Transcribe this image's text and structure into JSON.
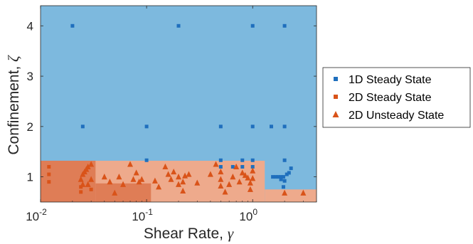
{
  "chart_data": {
    "type": "scatter",
    "xlabel_text": "Shear Rate,",
    "xlabel_symbol": "γ",
    "ylabel_text": "Confinement, ",
    "ylabel_symbol": "ζ",
    "x_scale": "log",
    "xlim": [
      0.01,
      4
    ],
    "ylim": [
      0.5,
      4.4
    ],
    "x_ticks": [
      {
        "value": 0.01,
        "base": "10",
        "exp": "-2"
      },
      {
        "value": 0.1,
        "base": "10",
        "exp": "-1"
      },
      {
        "value": 1,
        "base": "10",
        "exp": "0"
      }
    ],
    "y_ticks": [
      {
        "value": 1,
        "label": "1"
      },
      {
        "value": 2,
        "label": "2"
      },
      {
        "value": 3,
        "label": "3"
      },
      {
        "value": 4,
        "label": "4"
      }
    ],
    "grid": false,
    "legend_position": "right",
    "background_regions": [
      {
        "name": "1D Steady State",
        "color": "#7db9de",
        "x_range": [
          0.01,
          4
        ],
        "y_range": [
          0.5,
          4.4
        ]
      },
      {
        "name": "2D Unsteady State",
        "color": "#eeaa8c",
        "x_range": [
          0.01,
          1.3
        ],
        "y_range": [
          0.5,
          1.32
        ]
      },
      {
        "name": "2D Unsteady State",
        "color": "#eeaa8c",
        "x_range": [
          1.3,
          4
        ],
        "y_range": [
          0.5,
          0.75
        ]
      },
      {
        "name": "2D Steady State",
        "color": "#df7d56",
        "x_range": [
          0.01,
          0.033
        ],
        "y_range": [
          0.5,
          1.32
        ]
      },
      {
        "name": "2D Steady State",
        "color": "#df7d56",
        "x_range": [
          0.033,
          0.11
        ],
        "y_range": [
          0.5,
          0.87
        ]
      }
    ],
    "series": [
      {
        "name": "1D Steady State",
        "marker": "square",
        "color": "#1f6fbd",
        "points": [
          [
            0.02,
            4
          ],
          [
            0.2,
            4
          ],
          [
            1,
            4
          ],
          [
            2,
            4
          ],
          [
            0.025,
            2
          ],
          [
            0.1,
            2
          ],
          [
            0.5,
            2
          ],
          [
            1,
            2
          ],
          [
            1.5,
            2
          ],
          [
            2,
            2
          ],
          [
            0.1,
            1.33
          ],
          [
            0.5,
            1.33
          ],
          [
            0.8,
            1.33
          ],
          [
            1,
            1.33
          ],
          [
            2,
            1.33
          ],
          [
            0.5,
            1.2
          ],
          [
            0.65,
            1.2
          ],
          [
            0.8,
            1.2
          ],
          [
            1,
            1.2
          ],
          [
            2.3,
            1.17
          ],
          [
            1.55,
            1
          ],
          [
            1.65,
            1
          ],
          [
            1.75,
            1
          ],
          [
            1.85,
            1
          ],
          [
            1.95,
            1
          ],
          [
            2.1,
            1.05
          ],
          [
            2.2,
            1.08
          ],
          [
            1.85,
            0.95
          ],
          [
            2.0,
            0.92
          ],
          [
            1.95,
            0.8
          ]
        ]
      },
      {
        "name": "2D Steady State",
        "marker": "square",
        "color": "#d95319",
        "points": [
          [
            0.012,
            1.2
          ],
          [
            0.012,
            1.05
          ],
          [
            0.012,
            0.9
          ],
          [
            0.024,
            0.7
          ],
          [
            0.024,
            0.8
          ],
          [
            0.03,
            0.75
          ]
        ]
      },
      {
        "name": "2D Unsteady State",
        "marker": "triangle",
        "color": "#d95319",
        "points": [
          [
            0.024,
            0.95
          ],
          [
            0.025,
            1.05
          ],
          [
            0.026,
            1.1
          ],
          [
            0.027,
            1.15
          ],
          [
            0.028,
            1.2
          ],
          [
            0.03,
            1.25
          ],
          [
            0.03,
            0.95
          ],
          [
            0.025,
            0.85
          ],
          [
            0.028,
            0.85
          ],
          [
            0.04,
            1.0
          ],
          [
            0.045,
            0.9
          ],
          [
            0.05,
            0.68
          ],
          [
            0.055,
            1.0
          ],
          [
            0.06,
            0.85
          ],
          [
            0.07,
            1.25
          ],
          [
            0.075,
            0.95
          ],
          [
            0.08,
            1.08
          ],
          [
            0.085,
            0.9
          ],
          [
            0.09,
            0.95
          ],
          [
            0.12,
            0.92
          ],
          [
            0.13,
            0.8
          ],
          [
            0.15,
            1.2
          ],
          [
            0.16,
            1.05
          ],
          [
            0.17,
            0.95
          ],
          [
            0.18,
            1.1
          ],
          [
            0.2,
            1.0
          ],
          [
            0.2,
            0.85
          ],
          [
            0.22,
            0.9
          ],
          [
            0.22,
            0.72
          ],
          [
            0.23,
            1.02
          ],
          [
            0.25,
            1.05
          ],
          [
            0.3,
            0.88
          ],
          [
            0.4,
            1.05
          ],
          [
            0.45,
            1.25
          ],
          [
            0.5,
            1.1
          ],
          [
            0.5,
            0.95
          ],
          [
            0.5,
            0.82
          ],
          [
            0.55,
            0.7
          ],
          [
            0.6,
            0.85
          ],
          [
            0.65,
            1.0
          ],
          [
            0.7,
            1.2
          ],
          [
            0.75,
            0.9
          ],
          [
            0.8,
            1.08
          ],
          [
            0.85,
            1.03
          ],
          [
            0.9,
            0.98
          ],
          [
            0.95,
            0.88
          ],
          [
            0.95,
            0.75
          ],
          [
            1.0,
            1.12
          ],
          [
            1.0,
            0.97
          ],
          [
            2.0,
            0.68
          ],
          [
            3.0,
            0.68
          ]
        ]
      }
    ],
    "legend": [
      {
        "label": "1D Steady State",
        "marker": "square",
        "color": "#1f6fbd"
      },
      {
        "label": "2D Steady State",
        "marker": "square",
        "color": "#d95319"
      },
      {
        "label": "2D Unsteady State",
        "marker": "triangle",
        "color": "#d95319"
      }
    ]
  }
}
